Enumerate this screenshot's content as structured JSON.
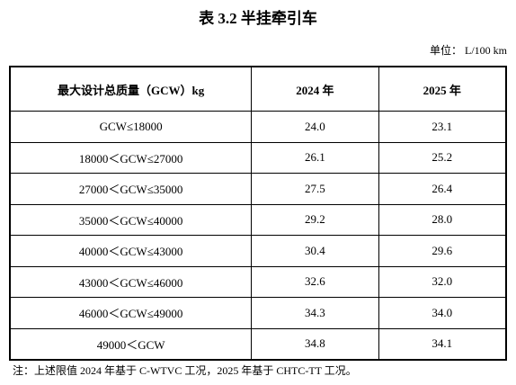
{
  "header": {
    "title": "表 3.2 半挂牵引车",
    "unit": "单位： L/100 km"
  },
  "table": {
    "columns": [
      "最大设计总质量（GCW）kg",
      "2024 年",
      "2025 年"
    ],
    "rows": [
      [
        "GCW≤18000",
        "24.0",
        "23.1"
      ],
      [
        "18000＜GCW≤27000",
        "26.1",
        "25.2"
      ],
      [
        "27000＜GCW≤35000",
        "27.5",
        "26.4"
      ],
      [
        "35000＜GCW≤40000",
        "29.2",
        "28.0"
      ],
      [
        "40000＜GCW≤43000",
        "30.4",
        "29.6"
      ],
      [
        "43000＜GCW≤46000",
        "32.6",
        "32.0"
      ],
      [
        "46000＜GCW≤49000",
        "34.3",
        "34.0"
      ],
      [
        "49000＜GCW",
        "34.8",
        "34.1"
      ]
    ]
  },
  "note": "注：上述限值 2024 年基于 C-WTVC 工况，2025 年基于 CHTC-TT 工况。"
}
